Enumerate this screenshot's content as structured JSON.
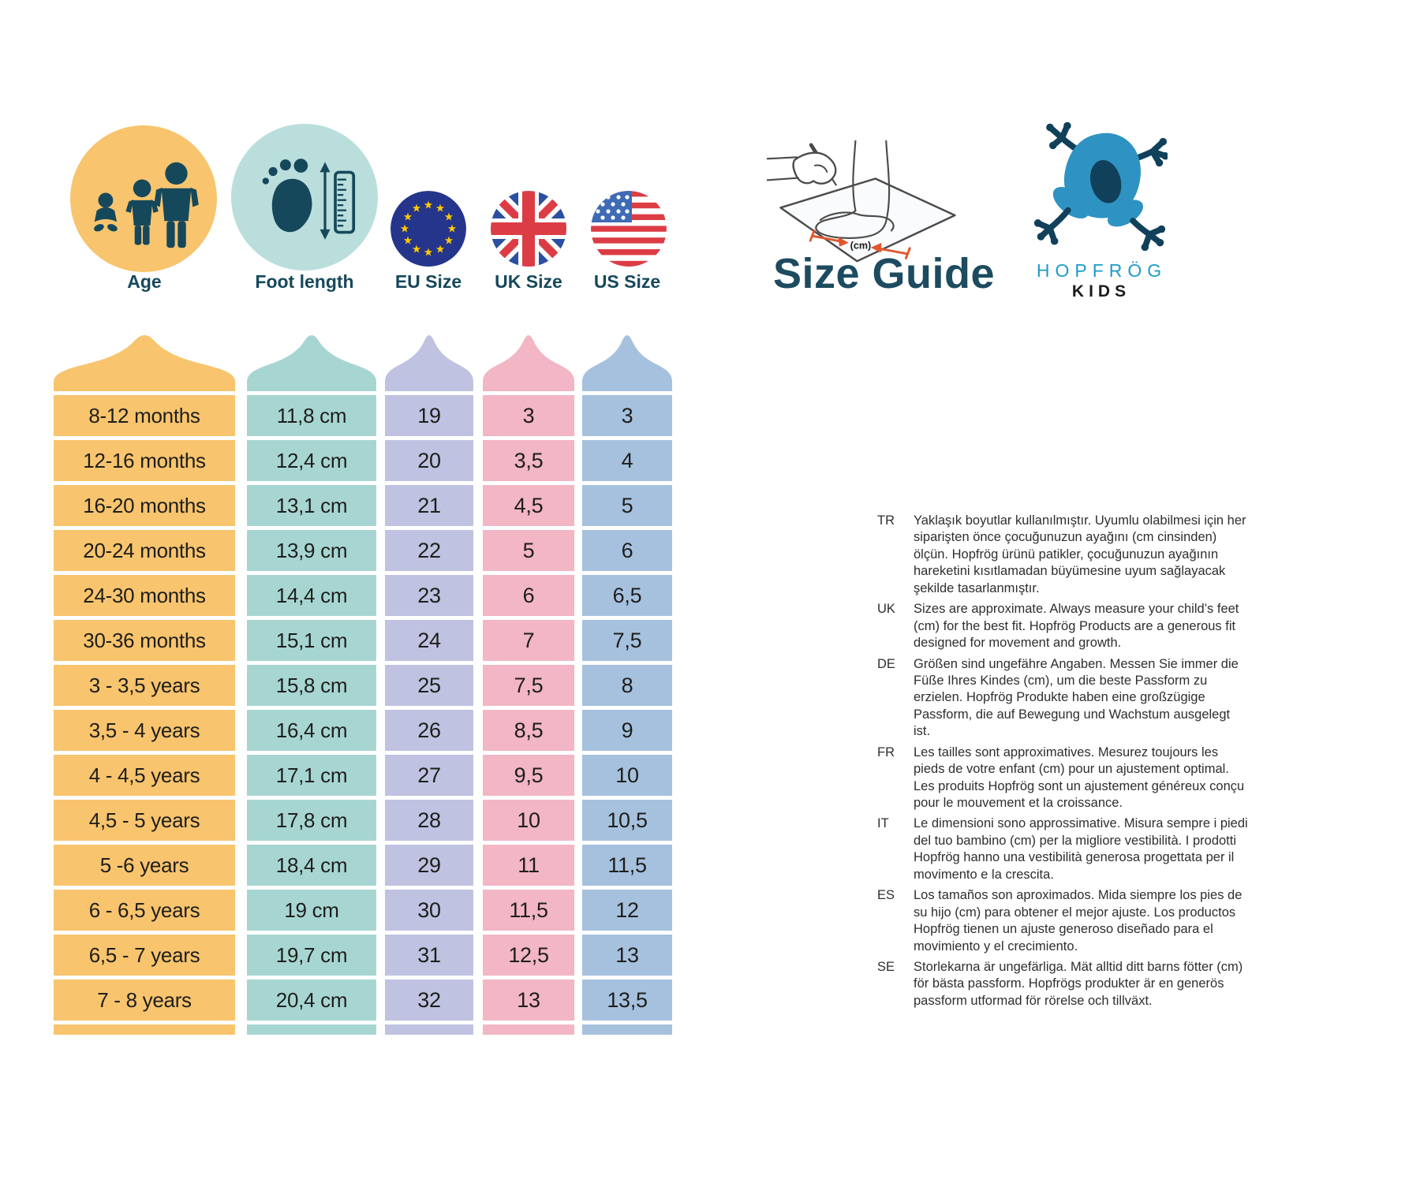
{
  "header": {
    "title": "Size Guide"
  },
  "brand": {
    "name": "HOPFRÖG",
    "sub": "KIDS"
  },
  "illustration": {
    "cm_label": "(cm)"
  },
  "chart_data": {
    "type": "table",
    "title": "Size Guide",
    "columns": [
      "Age",
      "Foot length",
      "EU Size",
      "UK Size",
      "US Size"
    ],
    "column_icons": [
      "age-children-icon",
      "foot-ruler-icon",
      "eu-flag-icon",
      "uk-flag-icon",
      "us-flag-icon"
    ],
    "rows": [
      [
        "8-12 months",
        "11,8 cm",
        "19",
        "3",
        "3"
      ],
      [
        "12-16 months",
        "12,4 cm",
        "20",
        "3,5",
        "4"
      ],
      [
        "16-20 months",
        "13,1 cm",
        "21",
        "4,5",
        "5"
      ],
      [
        "20-24 months",
        "13,9 cm",
        "22",
        "5",
        "6"
      ],
      [
        "24-30 months",
        "14,4 cm",
        "23",
        "6",
        "6,5"
      ],
      [
        "30-36 months",
        "15,1 cm",
        "24",
        "7",
        "7,5"
      ],
      [
        "3 - 3,5 years",
        "15,8 cm",
        "25",
        "7,5",
        "8"
      ],
      [
        "3,5 - 4 years",
        "16,4 cm",
        "26",
        "8,5",
        "9"
      ],
      [
        "4 - 4,5 years",
        "17,1 cm",
        "27",
        "9,5",
        "10"
      ],
      [
        "4,5 - 5 years",
        "17,8 cm",
        "28",
        "10",
        "10,5"
      ],
      [
        "5 -6 years",
        "18,4 cm",
        "29",
        "11",
        "11,5"
      ],
      [
        "6 - 6,5 years",
        "19 cm",
        "30",
        "11,5",
        "12"
      ],
      [
        "6,5 - 7 years",
        "19,7 cm",
        "31",
        "12,5",
        "13"
      ],
      [
        "7 - 8 years",
        "20,4 cm",
        "32",
        "13",
        "13,5"
      ]
    ]
  },
  "notes": [
    {
      "lang": "TR",
      "text": "Yaklaşık boyutlar kullanılmıştır. Uyumlu olabilmesi için her siparişten önce çocuğunuzun ayağını (cm cinsinden) ölçün. Hopfrög ürünü patikler, çocuğunuzun ayağının hareketini kısıtlamadan büyümesine uyum sağlayacak şekilde tasarlanmıştır."
    },
    {
      "lang": "UK",
      "text": "Sizes are approximate. Always measure your child’s feet (cm) for the best fit.  Hopfrög Products are a generous fit designed for movement and growth."
    },
    {
      "lang": "DE",
      "text": "Größen sind ungefähre Angaben. Messen Sie immer die Füße Ihres Kindes (cm), um die beste Passform zu erzielen. Hopfrög Produkte haben eine großzügige Passform, die auf Bewegung und Wachstum ausgelegt ist."
    },
    {
      "lang": "FR",
      "text": "Les tailles sont approximatives. Mesurez toujours les pieds de votre enfant (cm) pour un ajustement optimal. Les produits Hopfrög sont un ajustement généreux conçu pour le mouvement et la croissance."
    },
    {
      "lang": "IT",
      "text": "Le dimensioni sono approssimative. Misura sempre i piedi del tuo bambino (cm) per la migliore vestibilità. I prodotti Hopfrög hanno una vestibilità generosa progettata per il movimento e la crescita."
    },
    {
      "lang": "ES",
      "text": "Los tamaños son aproximados. Mida siempre los pies de su hijo (cm) para obtener el mejor ajuste. Los productos Hopfrög tienen un ajuste generoso diseñado para el movimiento y el crecimiento."
    },
    {
      "lang": "SE",
      "text": "Storlekarna är ungefärliga. Mät alltid ditt barns fötter (cm) för bästa passform. Hopfrögs produkter är en generös passform utformad för rörelse och tillväxt."
    }
  ],
  "colors": {
    "age_col": "#F8C46E",
    "foot_col": "#A7D6D2",
    "foot_circle": "#BADEDC",
    "eu_col": "#BFC2E0",
    "uk_col": "#F2B6C4",
    "us_col": "#A6C1DE",
    "dark_teal": "#16485C",
    "title": "#1D4B60",
    "logo_blue": "#1E9BC9",
    "frog_body": "#2E93C2",
    "frog_dark": "#10405A",
    "orange_arrow": "#E0572E",
    "cell_text": "#1E1E1C",
    "eu_blue": "#26358C",
    "eu_star": "#FFCC00",
    "uk_blue": "#2B4FA2",
    "flag_red": "#DC3D45",
    "us_blue": "#3F6BB5"
  }
}
